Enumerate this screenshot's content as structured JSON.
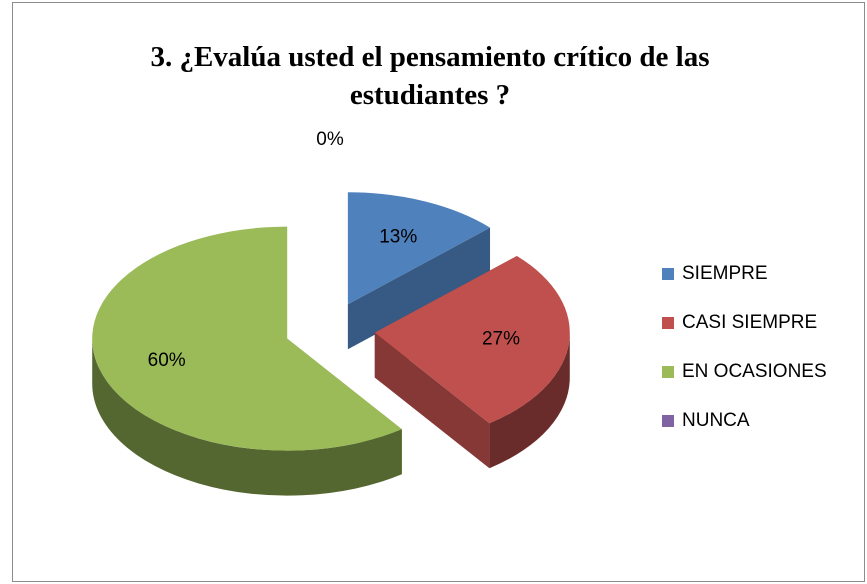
{
  "chart_data": {
    "type": "pie",
    "title": "3. ¿Evalúa usted el pensamiento crítico de las estudiantes ?",
    "categories": [
      "SIEMPRE",
      "CASI SIEMPRE",
      "EN OCASIONES",
      "NUNCA"
    ],
    "values": [
      13,
      27,
      60,
      0
    ],
    "value_labels": [
      "13%",
      "27%",
      "60%",
      "0%"
    ],
    "colors": [
      "#4f81bd",
      "#c0504d",
      "#9bbb59",
      "#8064a2"
    ],
    "legend": "right"
  }
}
